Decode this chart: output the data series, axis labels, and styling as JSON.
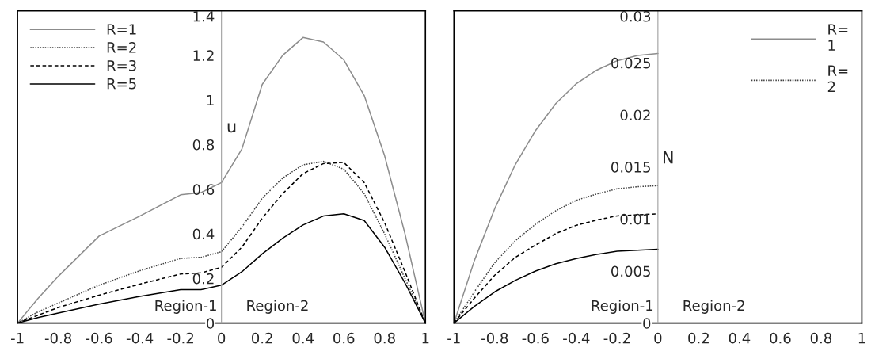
{
  "chart_data": [
    {
      "type": "line",
      "ylabel": "u",
      "annotations": [
        "Region-1",
        "Region-2"
      ],
      "legend": "top left",
      "grid": false,
      "x": [
        -1,
        -0.9,
        -0.8,
        -0.6,
        -0.4,
        -0.2,
        -0.1,
        0,
        0.1,
        0.2,
        0.3,
        0.4,
        0.5,
        0.6,
        0.7,
        0.8,
        0.9,
        1
      ],
      "xlim": [
        -1,
        1
      ],
      "xticks": [
        -1,
        -0.8,
        -0.6,
        -0.4,
        -0.2,
        0,
        0.2,
        0.4,
        0.6,
        0.8,
        1
      ],
      "ylim": [
        0,
        1.4
      ],
      "yticks": [
        0,
        0.2,
        0.4,
        0.6,
        0.8,
        1,
        1.2,
        1.4
      ],
      "series": [
        {
          "name": "R=1",
          "color": "#8c8c8c",
          "line_style": "solid",
          "values": [
            0,
            0.11,
            0.21,
            0.39,
            0.48,
            0.575,
            0.585,
            0.63,
            0.78,
            1.07,
            1.2,
            1.28,
            1.26,
            1.18,
            1.02,
            0.75,
            0.4,
            0
          ]
        },
        {
          "name": "R=2",
          "color": "#404040",
          "line_style": "dotted",
          "values": [
            0,
            0.05,
            0.09,
            0.17,
            0.235,
            0.29,
            0.295,
            0.32,
            0.43,
            0.56,
            0.65,
            0.71,
            0.725,
            0.69,
            0.58,
            0.4,
            0.2,
            0
          ]
        },
        {
          "name": "R=3",
          "color": "#000000",
          "line_style": "dashed",
          "values": [
            0,
            0.035,
            0.07,
            0.125,
            0.175,
            0.22,
            0.225,
            0.25,
            0.34,
            0.47,
            0.58,
            0.67,
            0.715,
            0.72,
            0.63,
            0.45,
            0.23,
            0
          ]
        },
        {
          "name": "R=5",
          "color": "#000000",
          "line_style": "solid",
          "values": [
            0,
            0.025,
            0.045,
            0.085,
            0.12,
            0.15,
            0.15,
            0.17,
            0.23,
            0.31,
            0.38,
            0.44,
            0.48,
            0.49,
            0.46,
            0.34,
            0.18,
            0
          ]
        }
      ]
    },
    {
      "type": "line",
      "ylabel": "N",
      "annotations": [
        "Region-1",
        "Region-2"
      ],
      "legend": "top right",
      "grid": false,
      "x": [
        -1,
        -0.9,
        -0.8,
        -0.7,
        -0.6,
        -0.5,
        -0.4,
        -0.3,
        -0.2,
        -0.1,
        0
      ],
      "xlim": [
        -1,
        1
      ],
      "xticks": [
        -1,
        -0.8,
        -0.6,
        -0.4,
        -0.2,
        0,
        0.2,
        0.4,
        0.6,
        0.8,
        1
      ],
      "ylim": [
        0,
        0.03
      ],
      "yticks": [
        0,
        0.005,
        0.01,
        0.015,
        0.02,
        0.025,
        0.03
      ],
      "series": [
        {
          "name": "R=\n1",
          "color": "#8c8c8c",
          "line_style": "solid",
          "values": [
            0,
            0.006,
            0.011,
            0.0152,
            0.0185,
            0.0211,
            0.023,
            0.0243,
            0.0252,
            0.0257,
            0.0259
          ]
        },
        {
          "name": "R=\n2",
          "color": "#404040",
          "line_style": "dotted",
          "values": [
            0,
            0.003,
            0.0058,
            0.0079,
            0.0095,
            0.0108,
            0.0118,
            0.0124,
            0.0129,
            0.0131,
            0.0132
          ]
        },
        {
          "color": "#000000",
          "line_style": "dashed",
          "values": [
            0,
            0.0024,
            0.0046,
            0.0063,
            0.0075,
            0.0086,
            0.0094,
            0.0099,
            0.0103,
            0.0104,
            0.0105
          ]
        },
        {
          "color": "#000000",
          "line_style": "solid",
          "values": [
            0,
            0.0016,
            0.003,
            0.0041,
            0.005,
            0.0057,
            0.0062,
            0.0066,
            0.0069,
            0.007,
            0.0071
          ]
        }
      ]
    }
  ]
}
